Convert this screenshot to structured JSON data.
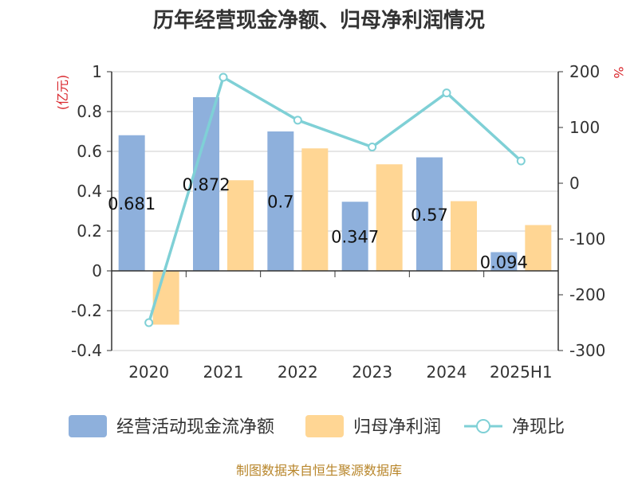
{
  "chart_data": {
    "type": "bar",
    "title": "历年经营现金净额、归母净利润情况",
    "categories": [
      "2020",
      "2021",
      "2022",
      "2023",
      "2024",
      "2025H1"
    ],
    "series": [
      {
        "name": "经营活动现金流净额",
        "kind": "bar",
        "axis": "left",
        "color": "#8eb0dc",
        "values": [
          0.681,
          0.872,
          0.7,
          0.347,
          0.57,
          0.094
        ],
        "labels": [
          "0.681",
          "0.872",
          "0.7",
          "0.347",
          "0.57",
          "0.094"
        ]
      },
      {
        "name": "归母净利润",
        "kind": "bar",
        "axis": "left",
        "color": "#ffd694",
        "values": [
          -0.27,
          0.455,
          0.615,
          0.535,
          0.35,
          0.23
        ]
      },
      {
        "name": "净现比",
        "kind": "line",
        "axis": "right",
        "color": "#7fd0d6",
        "values": [
          -250,
          190,
          113,
          65,
          162,
          40
        ]
      }
    ],
    "y_left": {
      "unit": "(亿元)",
      "ylim": [
        -0.4,
        1
      ],
      "ticks": [
        -0.4,
        -0.2,
        0,
        0.2,
        0.4,
        0.6,
        0.8,
        1
      ],
      "tick_labels": [
        "-0.4",
        "-0.2",
        "0",
        "0.2",
        "0.4",
        "0.6",
        "0.8",
        "1"
      ]
    },
    "y_right": {
      "unit": "%",
      "ylim": [
        -300,
        200
      ],
      "ticks": [
        -300,
        -200,
        -100,
        0,
        100,
        200
      ],
      "tick_labels": [
        "-300",
        "-200",
        "-100",
        "0",
        "100",
        "200"
      ]
    },
    "grid": true,
    "legend_position": "bottom"
  },
  "footer": {
    "source": "制图数据来自恒生聚源数据库"
  }
}
